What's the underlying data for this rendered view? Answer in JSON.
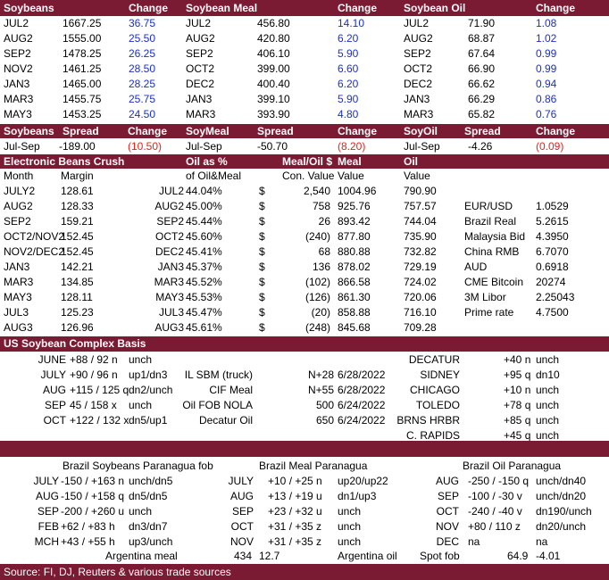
{
  "futures": {
    "headers": [
      "Soybeans",
      "Change",
      "Soybean Meal",
      "Change",
      "Soybean Oil",
      "Change"
    ],
    "rows": [
      [
        "JUL2",
        "1667.25",
        "36.75",
        "JUL2",
        "456.80",
        "14.10",
        "JUL2",
        "71.90",
        "1.08"
      ],
      [
        "AUG2",
        "1555.00",
        "25.50",
        "AUG2",
        "420.80",
        "6.20",
        "AUG2",
        "68.87",
        "1.02"
      ],
      [
        "SEP2",
        "1478.25",
        "26.25",
        "SEP2",
        "406.10",
        "5.90",
        "SEP2",
        "67.64",
        "0.99"
      ],
      [
        "NOV2",
        "1461.25",
        "28.50",
        "OCT2",
        "399.00",
        "6.60",
        "OCT2",
        "66.90",
        "0.99"
      ],
      [
        "JAN3",
        "1465.00",
        "28.25",
        "DEC2",
        "400.40",
        "6.20",
        "DEC2",
        "66.62",
        "0.94"
      ],
      [
        "MAR3",
        "1455.75",
        "25.75",
        "JAN3",
        "399.10",
        "5.90",
        "JAN3",
        "66.29",
        "0.86"
      ],
      [
        "MAY3",
        "1453.25",
        "24.50",
        "MAR3",
        "393.90",
        "4.80",
        "MAR3",
        "65.82",
        "0.76"
      ]
    ]
  },
  "spreads": {
    "headers": [
      "Soybeans",
      "Spread",
      "Change",
      "SoyMeal",
      "Spread",
      "Change",
      "SoyOil",
      "Spread",
      "Change"
    ],
    "row": [
      "Jul-Sep",
      "-189.00",
      "(10.50)",
      "Jul-Sep",
      "-50.70",
      "(8.20)",
      "Jul-Sep",
      "-4.26",
      "(0.09)"
    ]
  },
  "crush": {
    "headers": [
      "Electronic Beans Crush",
      "Oil as %",
      "Meal/Oil $",
      "Meal",
      "Oil"
    ],
    "subheaders": [
      "Month",
      "Margin",
      "of Oil&Meal",
      "Con. Value",
      "Value",
      "Value"
    ],
    "rows": [
      [
        "JULY2",
        "128.61",
        "JUL2",
        "44.04%",
        "$",
        "2,540",
        "1004.96",
        "790.90"
      ],
      [
        "AUG2",
        "128.33",
        "AUG2",
        "45.00%",
        "$",
        "758",
        "925.76",
        "757.57"
      ],
      [
        "SEP2",
        "159.21",
        "SEP2",
        "45.44%",
        "$",
        "26",
        "893.42",
        "744.04"
      ],
      [
        "OCT2/NOV2",
        "152.45",
        "OCT2",
        "45.60%",
        "$",
        "(240)",
        "877.80",
        "735.90"
      ],
      [
        "NOV2/DEC2",
        "152.45",
        "DEC2",
        "45.41%",
        "$",
        "68",
        "880.88",
        "732.82"
      ],
      [
        "JAN3",
        "142.21",
        "JAN3",
        "45.37%",
        "$",
        "136",
        "878.02",
        "729.19"
      ],
      [
        "MAR3",
        "134.85",
        "MAR3",
        "45.52%",
        "$",
        "(102)",
        "866.58",
        "724.02"
      ],
      [
        "MAY3",
        "128.11",
        "MAY3",
        "45.53%",
        "$",
        "(126)",
        "861.30",
        "720.06"
      ],
      [
        "JUL3",
        "125.23",
        "JUL3",
        "45.47%",
        "$",
        "(20)",
        "858.88",
        "716.10"
      ],
      [
        "AUG3",
        "126.96",
        "AUG3",
        "45.61%",
        "$",
        "(248)",
        "845.68",
        "709.28"
      ]
    ],
    "markets": [
      [
        "EUR/USD",
        "1.0529"
      ],
      [
        "Brazil Real",
        "5.2615"
      ],
      [
        "Malaysia Bid",
        "4.3950"
      ],
      [
        "China RMB",
        "6.7070"
      ],
      [
        "AUD",
        "0.6918"
      ],
      [
        "CME Bitcoin",
        "20274"
      ],
      [
        "3M Libor",
        "2.25043"
      ],
      [
        "Prime rate",
        "4.7500"
      ]
    ]
  },
  "basis": {
    "title": "US Soybean Complex Basis",
    "left": [
      [
        "JUNE",
        "+88 / 92 n",
        "unch"
      ],
      [
        "JULY",
        "+90 / 96 n",
        "up1/dn3"
      ],
      [
        "AUG",
        "+115 / 125 q",
        "dn2/unch"
      ],
      [
        "SEP",
        "45 / 158 x",
        "unch"
      ],
      [
        "OCT",
        "+122 / 132 x",
        "dn5/up1"
      ]
    ],
    "mid": [
      [
        "IL SBM (truck)",
        "N+28",
        "6/28/2022"
      ],
      [
        "CIF Meal",
        "N+55",
        "6/28/2022"
      ],
      [
        "Oil FOB NOLA",
        "500",
        "6/24/2022"
      ],
      [
        "Decatur Oil",
        "650",
        "6/24/2022"
      ]
    ],
    "right": [
      [
        "DECATUR",
        "+40 n",
        "unch"
      ],
      [
        "SIDNEY",
        "+95 q",
        "dn10"
      ],
      [
        "CHICAGO",
        "+10 n",
        "unch"
      ],
      [
        "TOLEDO",
        "+78 q",
        "unch"
      ],
      [
        "BRNS HRBR",
        "+85 q",
        "unch"
      ],
      [
        "C. RAPIDS",
        "+45 q",
        "unch"
      ]
    ]
  },
  "brazil": {
    "titles": [
      "Brazil Soybeans Paranagua fob",
      "Brazil Meal Paranagua",
      "Brazil Oil Paranagua"
    ],
    "soy": [
      [
        "JULY",
        "-150 / +163 n",
        "unch/dn5"
      ],
      [
        "AUG",
        "-150 / +158 q",
        "dn5/dn5"
      ],
      [
        "SEP",
        "-200 / +260 u",
        "unch"
      ],
      [
        "FEB",
        "+62 / +83 h",
        "dn3/dn7"
      ],
      [
        "MCH",
        "+43 / +55 h",
        "up3/unch"
      ]
    ],
    "meal": [
      [
        "JULY",
        "+10 / +25 n",
        "up20/up22"
      ],
      [
        "AUG",
        "+13 / +19 u",
        "dn1/up3"
      ],
      [
        "SEP",
        "+23 / +32 u",
        "unch"
      ],
      [
        "OCT",
        "+31 / +35 z",
        "unch"
      ],
      [
        "NOV",
        "+31 / +35 z",
        "unch"
      ]
    ],
    "oil": [
      [
        "AUG",
        "-250 / -150 q",
        "unch/dn40"
      ],
      [
        "SEP",
        "-100 / -30 v",
        "unch/dn20"
      ],
      [
        "OCT",
        "-240 / -40 v",
        "dn190/unch"
      ],
      [
        "NOV",
        "+80 / 110 z",
        "dn20/unch"
      ],
      [
        "DEC",
        "na",
        "na"
      ]
    ],
    "argentina": [
      "Argentina meal",
      "434",
      "12.7",
      "Argentina oil",
      "Spot fob",
      "64.9",
      "-4.01"
    ]
  },
  "footer": "Source: FI, DJ, Reuters & various trade sources",
  "colors": {
    "header_bg": "#7b1a33",
    "change_blue": "#1a2fcf",
    "change_red": "#e0241b"
  }
}
